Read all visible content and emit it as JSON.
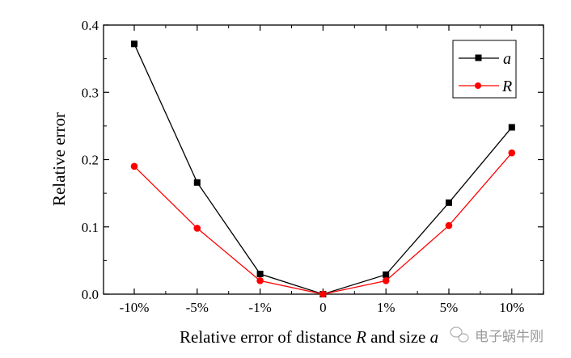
{
  "chart_data": {
    "type": "line",
    "title": "",
    "xlabel": "Relative error of distance R and size a",
    "xlabel_parts": [
      "Relative error of distance ",
      "R",
      " and size ",
      "a"
    ],
    "ylabel": "Relative error",
    "categories": [
      "-10%",
      "-5%",
      "-1%",
      "0",
      "1%",
      "5%",
      "10%"
    ],
    "ylim": [
      0.0,
      0.4
    ],
    "yticks": [
      "0.0",
      "0.1",
      "0.2",
      "0.3",
      "0.4"
    ],
    "grid": false,
    "legend_position": "top-right",
    "series": [
      {
        "name": "a",
        "color": "#000000",
        "marker": "square",
        "values": [
          0.372,
          0.166,
          0.03,
          0.0,
          0.029,
          0.136,
          0.248
        ]
      },
      {
        "name": "R",
        "color": "#ff0000",
        "marker": "circle",
        "values": [
          0.19,
          0.098,
          0.02,
          0.0,
          0.02,
          0.102,
          0.21
        ]
      }
    ]
  },
  "watermark": "电子蜗牛刚"
}
